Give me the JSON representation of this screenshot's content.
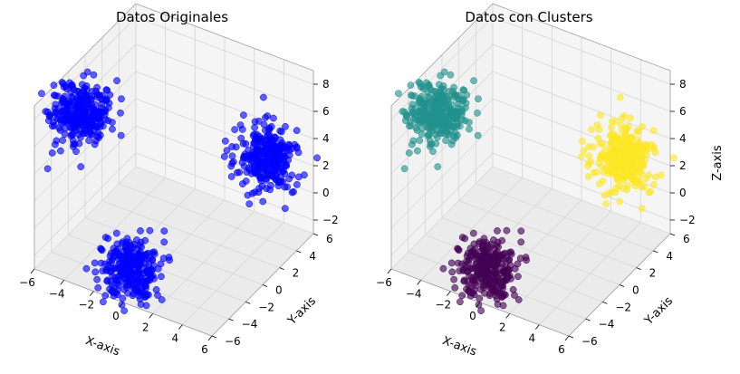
{
  "colors": {
    "pane_floor": "#ebebeb",
    "pane_wall": "#f2f2f2",
    "grid": "#d6d6d6",
    "edge": "#a0a0a0",
    "original": "#0000ff",
    "cluster_purple": "#440154",
    "cluster_teal": "#21918c",
    "cluster_yellow": "#fde725"
  },
  "chart_data": [
    {
      "type": "scatter",
      "title": "Datos Originales",
      "xlabel": "X-axis",
      "ylabel": "Y-axis",
      "zlabel": "",
      "xlim": [
        -6,
        6
      ],
      "ylim": [
        -6,
        6
      ],
      "zlim": [
        -3,
        9
      ],
      "xticks": [
        "−6",
        "−4",
        "−2",
        "0",
        "2",
        "4",
        "6"
      ],
      "yticks": [
        "−6",
        "−4",
        "−2",
        "0",
        "2",
        "4",
        "6"
      ],
      "zticks": [
        "−2",
        "0",
        "2",
        "4",
        "6",
        "8"
      ],
      "color_mode": "single",
      "series": [
        {
          "center": [
            -4,
            -4,
            8
          ],
          "spread": 0.9,
          "count": 300
        },
        {
          "center": [
            4,
            4,
            3
          ],
          "spread": 0.9,
          "count": 300
        },
        {
          "center": [
            0,
            -5,
            -1
          ],
          "spread": 0.9,
          "count": 300
        }
      ]
    },
    {
      "type": "scatter",
      "title": "Datos con Clusters",
      "xlabel": "X-axis",
      "ylabel": "Y-axis",
      "zlabel": "Z-axis",
      "xlim": [
        -6,
        6
      ],
      "ylim": [
        -6,
        6
      ],
      "zlim": [
        -3,
        9
      ],
      "xticks": [
        "−6",
        "−4",
        "−2",
        "0",
        "2",
        "4",
        "6"
      ],
      "yticks": [
        "−6",
        "−4",
        "−2",
        "0",
        "2",
        "4",
        "6"
      ],
      "zticks": [
        "−2",
        "0",
        "2",
        "4",
        "6",
        "8"
      ],
      "color_mode": "cluster",
      "series": [
        {
          "center": [
            -4,
            -4,
            8
          ],
          "spread": 0.9,
          "count": 300,
          "color": "#21918c"
        },
        {
          "center": [
            4,
            4,
            3
          ],
          "spread": 0.9,
          "count": 300,
          "color": "#fde725"
        },
        {
          "center": [
            0,
            -5,
            -1
          ],
          "spread": 0.9,
          "count": 300,
          "color": "#440154"
        }
      ]
    }
  ]
}
